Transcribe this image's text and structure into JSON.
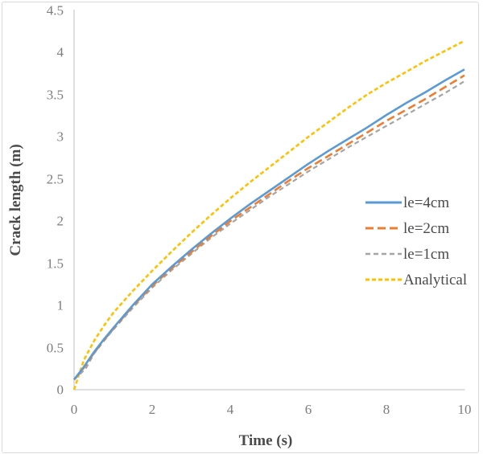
{
  "figure": {
    "background": "#ffffff",
    "border_color": "#d9d9d9"
  },
  "chart_data": {
    "type": "line",
    "title": "",
    "xlabel": "Time (s)",
    "ylabel": "Crack length (m)",
    "xlim": [
      0,
      10
    ],
    "ylim": [
      0,
      4.5
    ],
    "x_ticks": [
      "0",
      "2",
      "4",
      "6",
      "8",
      "10"
    ],
    "y_ticks": [
      "0",
      "0.5",
      "1",
      "1.5",
      "2",
      "2.5",
      "3",
      "3.5",
      "4",
      "4.5"
    ],
    "grid": false,
    "legend_position": "middle-right",
    "axis_line_color": "#bfbfbf",
    "tick_label_color": "#7d7d7d",
    "axis_title_color": "#4a4a4a",
    "series": [
      {
        "name": "le=4cm",
        "color": "#5B9BD5",
        "dash": "none",
        "width": 2.6,
        "points": [
          [
            0,
            0.12
          ],
          [
            0.25,
            0.27
          ],
          [
            0.5,
            0.44
          ],
          [
            0.75,
            0.59
          ],
          [
            1,
            0.73
          ],
          [
            1.5,
            1.0
          ],
          [
            2,
            1.25
          ],
          [
            2.5,
            1.46
          ],
          [
            3,
            1.66
          ],
          [
            3.5,
            1.85
          ],
          [
            4,
            2.03
          ],
          [
            4.5,
            2.2
          ],
          [
            5,
            2.36
          ],
          [
            5.5,
            2.52
          ],
          [
            6,
            2.68
          ],
          [
            6.5,
            2.83
          ],
          [
            7,
            2.97
          ],
          [
            7.5,
            3.11
          ],
          [
            8,
            3.26
          ],
          [
            8.5,
            3.4
          ],
          [
            9,
            3.53
          ],
          [
            9.5,
            3.67
          ],
          [
            10,
            3.8
          ]
        ]
      },
      {
        "name": "le=2cm",
        "color": "#ED7D31",
        "dash": "10 5",
        "width": 2.6,
        "points": [
          [
            0,
            0.12
          ],
          [
            0.25,
            0.26
          ],
          [
            0.5,
            0.43
          ],
          [
            0.75,
            0.58
          ],
          [
            1,
            0.72
          ],
          [
            1.5,
            0.99
          ],
          [
            2,
            1.23
          ],
          [
            2.5,
            1.44
          ],
          [
            3,
            1.63
          ],
          [
            3.5,
            1.82
          ],
          [
            4,
            2.0
          ],
          [
            4.5,
            2.16
          ],
          [
            5,
            2.32
          ],
          [
            5.5,
            2.48
          ],
          [
            6,
            2.63
          ],
          [
            6.5,
            2.77
          ],
          [
            7,
            2.91
          ],
          [
            7.5,
            3.05
          ],
          [
            8,
            3.19
          ],
          [
            8.5,
            3.32
          ],
          [
            9,
            3.45
          ],
          [
            9.5,
            3.59
          ],
          [
            10,
            3.73
          ]
        ]
      },
      {
        "name": "le=1cm",
        "color": "#A5A5A5",
        "dash": "6 4",
        "width": 2.2,
        "points": [
          [
            0,
            0.12
          ],
          [
            0.3,
            0.25
          ],
          [
            0.5,
            0.42
          ],
          [
            0.75,
            0.57
          ],
          [
            1,
            0.71
          ],
          [
            1.5,
            0.97
          ],
          [
            2,
            1.21
          ],
          [
            2.5,
            1.42
          ],
          [
            3,
            1.61
          ],
          [
            3.5,
            1.8
          ],
          [
            4,
            1.97
          ],
          [
            4.5,
            2.13
          ],
          [
            5,
            2.29
          ],
          [
            5.5,
            2.44
          ],
          [
            6,
            2.59
          ],
          [
            6.5,
            2.73
          ],
          [
            7,
            2.87
          ],
          [
            7.5,
            3.0
          ],
          [
            8,
            3.13
          ],
          [
            8.5,
            3.26
          ],
          [
            9,
            3.39
          ],
          [
            9.5,
            3.52
          ],
          [
            10,
            3.66
          ]
        ]
      },
      {
        "name": "Analytical",
        "color": "#FFC000",
        "dash": "5 3",
        "width": 2.6,
        "points": [
          [
            0,
            0
          ],
          [
            0.25,
            0.35
          ],
          [
            0.5,
            0.57
          ],
          [
            0.75,
            0.75
          ],
          [
            1,
            0.91
          ],
          [
            1.5,
            1.17
          ],
          [
            2,
            1.41
          ],
          [
            2.5,
            1.64
          ],
          [
            3,
            1.86
          ],
          [
            3.5,
            2.07
          ],
          [
            4,
            2.27
          ],
          [
            4.5,
            2.46
          ],
          [
            5,
            2.64
          ],
          [
            5.5,
            2.82
          ],
          [
            6,
            3.0
          ],
          [
            6.5,
            3.17
          ],
          [
            7,
            3.34
          ],
          [
            7.5,
            3.5
          ],
          [
            8,
            3.64
          ],
          [
            8.5,
            3.77
          ],
          [
            9,
            3.9
          ],
          [
            9.5,
            4.02
          ],
          [
            10,
            4.14
          ]
        ]
      }
    ]
  }
}
